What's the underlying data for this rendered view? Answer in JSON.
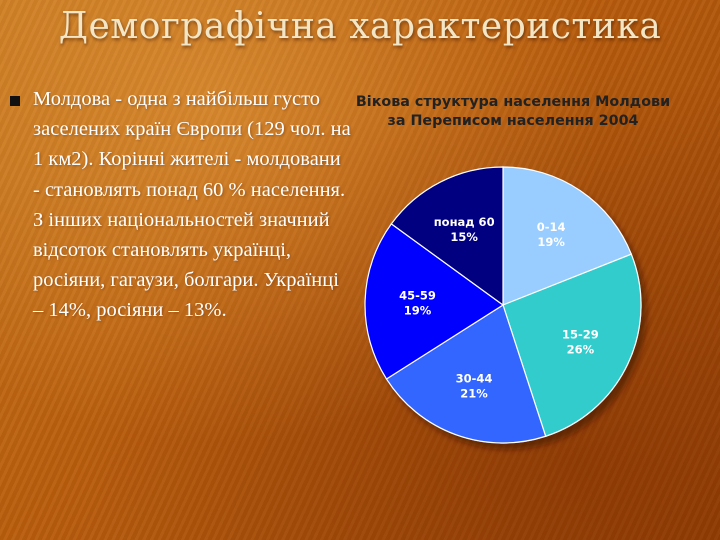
{
  "slide": {
    "title": "Демографічна характеристика",
    "bullet_text": "Молдова - одна з найбільш густо заселених країн Європи (129 чол. на 1 км2). Корінні жителі - молдовани - становлять понад 60 % населення. З інших національностей значний відсоток становлять українці, росіяни, гагаузи, болгари. Українці – 14%, росіяни – 13%."
  },
  "chart_data": {
    "type": "pie",
    "title_line1": "Вікова структура населення Молдови",
    "title_line2": "за Переписом населення 2004",
    "slices": [
      {
        "name": "0-14",
        "value": 19,
        "label": "19%",
        "color": "#99ccff"
      },
      {
        "name": "15-29",
        "value": 26,
        "label": "26%",
        "color": "#33cccc"
      },
      {
        "name": "30-44",
        "value": 21,
        "label": "21%",
        "color": "#3366ff"
      },
      {
        "name": "45-59",
        "value": 19,
        "label": "19%",
        "color": "#0000ff"
      },
      {
        "name": "понад 60",
        "value": 15,
        "label": "15%",
        "color": "#000080"
      }
    ]
  }
}
